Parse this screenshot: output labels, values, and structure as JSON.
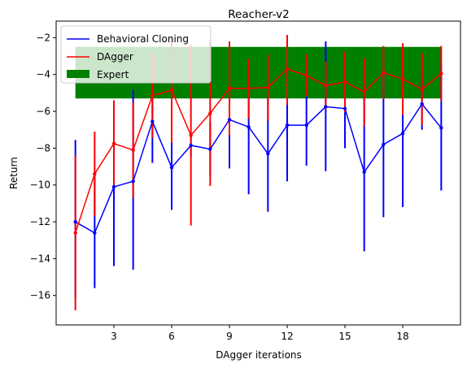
{
  "chart_data": {
    "type": "line",
    "title": "Reacher-v2",
    "xlabel": "DAgger iterations",
    "ylabel": "Return",
    "xlim": [
      0,
      21
    ],
    "ylim": [
      -17.6,
      -1.1
    ],
    "xticks": [
      3,
      6,
      9,
      12,
      15,
      18
    ],
    "yticks": [
      -16,
      -14,
      -12,
      -10,
      -8,
      -6,
      -4,
      -2
    ],
    "x": [
      1,
      2,
      3,
      4,
      5,
      6,
      7,
      8,
      9,
      10,
      11,
      12,
      13,
      14,
      15,
      16,
      17,
      18,
      19,
      20
    ],
    "series": [
      {
        "name": "Behavioral Cloning",
        "color": "#0000ff",
        "values": [
          -12.0,
          -12.6,
          -10.1,
          -9.8,
          -6.55,
          -9.05,
          -7.85,
          -8.05,
          -6.45,
          -6.85,
          -8.3,
          -6.75,
          -6.75,
          -5.75,
          -5.85,
          -9.3,
          -7.8,
          -7.2,
          -5.6,
          -6.9
        ],
        "err_low": [
          -16.1,
          -15.6,
          -14.4,
          -14.6,
          -8.8,
          -11.35,
          -8.45,
          -9.5,
          -9.1,
          -10.5,
          -11.45,
          -9.8,
          -8.95,
          -9.25,
          -8.0,
          -13.6,
          -11.75,
          -11.2,
          -7.0,
          -10.3
        ],
        "err_high": [
          -7.55,
          -9.4,
          -5.6,
          -4.85,
          -4.35,
          -6.3,
          -7.3,
          -6.6,
          -3.5,
          -3.55,
          -5.25,
          -3.75,
          -4.55,
          -2.2,
          -3.7,
          -4.75,
          -3.9,
          -3.25,
          -4.15,
          -3.5
        ]
      },
      {
        "name": "DAgger",
        "color": "#ff0000",
        "values": [
          -12.6,
          -9.4,
          -7.75,
          -8.1,
          -5.15,
          -4.85,
          -7.3,
          -6.1,
          -4.75,
          -4.75,
          -4.7,
          -3.7,
          -4.05,
          -4.6,
          -4.4,
          -4.95,
          -3.9,
          -4.25,
          -4.8,
          -3.95
        ],
        "err_low": [
          -16.8,
          -11.7,
          -10.1,
          -10.7,
          -7.45,
          -7.7,
          -12.2,
          -10.05,
          -7.3,
          -6.4,
          -6.5,
          -5.65,
          -5.2,
          -3.3,
          -6.05,
          -6.8,
          -5.35,
          -6.2,
          -6.75,
          -5.45
        ],
        "err_high": [
          -8.4,
          -7.1,
          -5.4,
          -5.5,
          -2.85,
          -2.0,
          -2.4,
          -2.15,
          -2.2,
          -3.15,
          -2.9,
          -1.85,
          -2.9,
          -5.9,
          -2.75,
          -3.1,
          -2.45,
          -2.3,
          -2.85,
          -2.45
        ]
      }
    ],
    "expert": {
      "name": "Expert",
      "color": "#008000",
      "x_range": [
        1,
        20
      ],
      "y_range": [
        -5.3,
        -2.5
      ]
    },
    "legend": "top-left",
    "grid": false
  }
}
